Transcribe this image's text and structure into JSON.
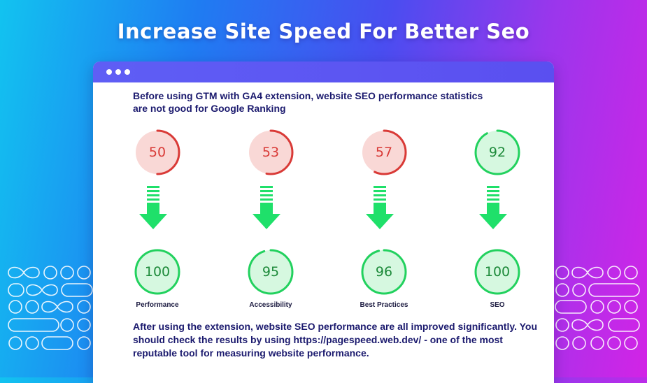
{
  "headline": "Increase Site Speed For Better Seo",
  "intro_text": "Before using GTM with GA4 extension, website SEO performance statistics are not good for Google Ranking",
  "metrics": [
    {
      "label": "Performance",
      "before": "50",
      "after": "100",
      "before_status": "red",
      "after_status": "green"
    },
    {
      "label": "Accessibility",
      "before": "53",
      "after": "95",
      "before_status": "red",
      "after_status": "green"
    },
    {
      "label": "Best Practices",
      "before": "57",
      "after": "96",
      "before_status": "red",
      "after_status": "green"
    },
    {
      "label": "SEO",
      "before": "92",
      "after": "100",
      "before_status": "green",
      "after_status": "green"
    }
  ],
  "outro_text": "After using the extension, website SEO performance are all improved significantly. You should check the results by using https://pagespeed.web.dev/ - one of the most reputable tool for measuring website performance.",
  "colors": {
    "red_ring": "#d93a37",
    "red_fill": "#f9d8d6",
    "green_ring": "#22d15e",
    "green_fill": "#d6f8e0",
    "arrow": "#1fe06a",
    "text_dark": "#1b1a6e",
    "titlebar": "#5f5ef5"
  },
  "icons": [
    "window-dots-icon",
    "down-arrow-icon",
    "infinity-pattern-icon"
  ]
}
